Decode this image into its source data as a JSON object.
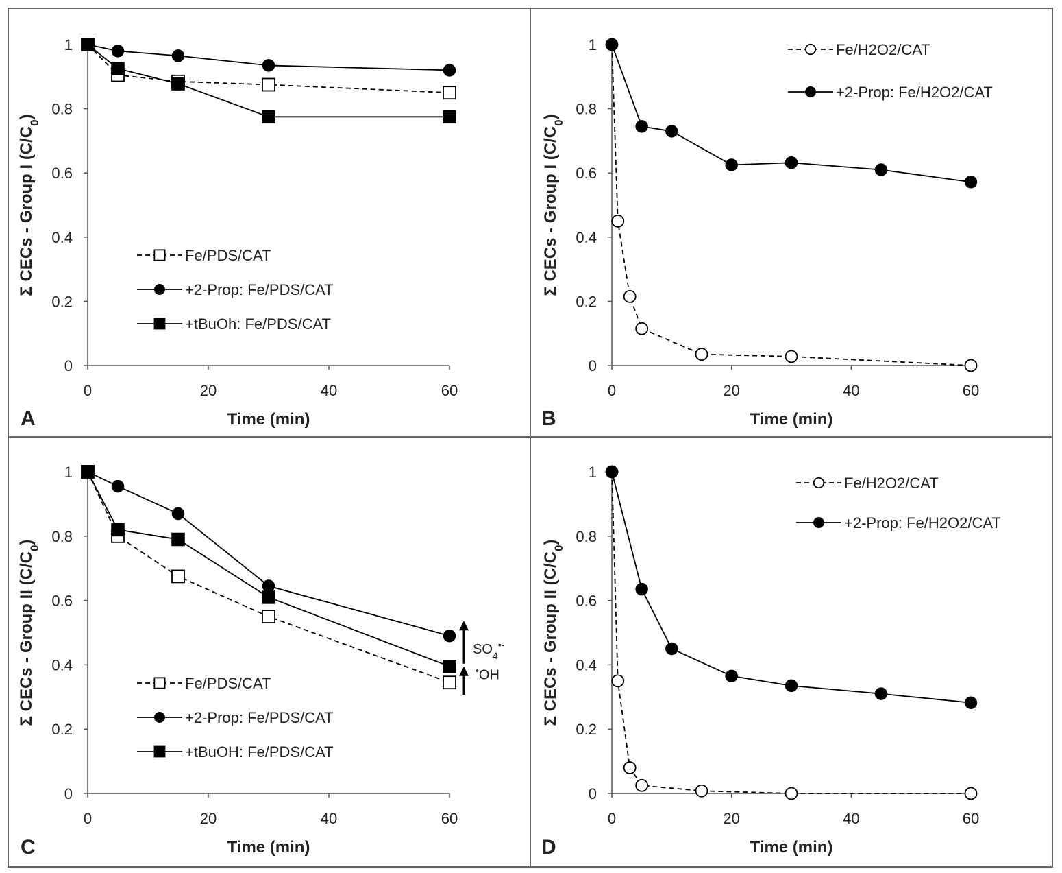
{
  "chart_data": [
    {
      "type": "line",
      "panel": "A",
      "xlabel": "Time (min)",
      "ylabel": "Σ CECs - Group I (C/C",
      "ylabel_sub": "0",
      "ylabel_end": ")",
      "xlim": [
        0,
        60
      ],
      "ylim": [
        0,
        1
      ],
      "xticks": [
        "0",
        "20",
        "40",
        "60"
      ],
      "yticks": [
        "0",
        "0.2",
        "0.4",
        "0.6",
        "0.8",
        "1"
      ],
      "legend_position": "lower-left",
      "series": [
        {
          "name": "Fe/PDS/CAT",
          "marker": "square-open",
          "dash": true,
          "x": [
            0,
            5,
            15,
            30,
            60
          ],
          "y": [
            1.0,
            0.905,
            0.885,
            0.875,
            0.85
          ]
        },
        {
          "name": "+2-Prop: Fe/PDS/CAT",
          "marker": "circle-filled",
          "dash": false,
          "x": [
            0,
            5,
            15,
            30,
            60
          ],
          "y": [
            1.0,
            0.98,
            0.965,
            0.935,
            0.92
          ]
        },
        {
          "name": "+tBuOh: Fe/PDS/CAT",
          "marker": "square-filled",
          "dash": false,
          "x": [
            0,
            5,
            15,
            30,
            60
          ],
          "y": [
            1.0,
            0.925,
            0.878,
            0.775,
            0.775
          ]
        }
      ]
    },
    {
      "type": "line",
      "panel": "B",
      "xlabel": "Time (min)",
      "ylabel": "Σ CECs - Group I (C/C",
      "ylabel_sub": "0",
      "ylabel_end": ")",
      "xlim": [
        0,
        60
      ],
      "ylim": [
        0,
        1
      ],
      "xticks": [
        "0",
        "20",
        "40",
        "60"
      ],
      "yticks": [
        "0",
        "0.2",
        "0.4",
        "0.6",
        "0.8",
        "1"
      ],
      "legend_position": "top-right",
      "series": [
        {
          "name": "Fe/H2O2/CAT",
          "marker": "circle-open",
          "dash": true,
          "x": [
            0,
            1,
            3,
            5,
            15,
            30,
            60
          ],
          "y": [
            1.0,
            0.45,
            0.215,
            0.115,
            0.035,
            0.028,
            0.0
          ]
        },
        {
          "name": "+2-Prop: Fe/H2O2/CAT",
          "marker": "circle-filled",
          "dash": false,
          "x": [
            0,
            5,
            10,
            20,
            30,
            45,
            60
          ],
          "y": [
            1.0,
            0.745,
            0.73,
            0.625,
            0.632,
            0.61,
            0.572
          ]
        }
      ]
    },
    {
      "type": "line",
      "panel": "C",
      "xlabel": "Time (min)",
      "ylabel": "Σ CECs - Group II (C/C",
      "ylabel_sub": "0",
      "ylabel_end": ")",
      "xlim": [
        0,
        60
      ],
      "ylim": [
        0,
        1
      ],
      "xticks": [
        "0",
        "20",
        "40",
        "60"
      ],
      "yticks": [
        "0",
        "0.2",
        "0.4",
        "0.6",
        "0.8",
        "1"
      ],
      "legend_position": "lower-left",
      "annotations": {
        "so4": "SO",
        "so4_sub": "4",
        "so4_sup": "•-",
        "oh_dot": "•",
        "oh": "OH"
      },
      "series": [
        {
          "name": "Fe/PDS/CAT",
          "marker": "square-open",
          "dash": true,
          "x": [
            0,
            5,
            15,
            30,
            60
          ],
          "y": [
            1.0,
            0.8,
            0.675,
            0.55,
            0.345
          ]
        },
        {
          "name": "+2-Prop: Fe/PDS/CAT",
          "marker": "circle-filled",
          "dash": false,
          "x": [
            0,
            5,
            15,
            30,
            60
          ],
          "y": [
            1.0,
            0.955,
            0.87,
            0.645,
            0.49
          ]
        },
        {
          "name": "+tBuOH: Fe/PDS/CAT",
          "marker": "square-filled",
          "dash": false,
          "x": [
            0,
            5,
            15,
            30,
            60
          ],
          "y": [
            1.0,
            0.82,
            0.79,
            0.61,
            0.395
          ]
        }
      ]
    },
    {
      "type": "line",
      "panel": "D",
      "xlabel": "Time (min)",
      "ylabel": "Σ CECs - Group II (C/C",
      "ylabel_sub": "0",
      "ylabel_end": ")",
      "xlim": [
        0,
        60
      ],
      "ylim": [
        0,
        1
      ],
      "xticks": [
        "0",
        "20",
        "40",
        "60"
      ],
      "yticks": [
        "0",
        "0.2",
        "0.4",
        "0.6",
        "0.8",
        "1"
      ],
      "legend_position": "top-right",
      "series": [
        {
          "name": "Fe/H2O2/CAT",
          "marker": "circle-open",
          "dash": true,
          "x": [
            0,
            1,
            3,
            5,
            15,
            30,
            60
          ],
          "y": [
            1.0,
            0.35,
            0.08,
            0.025,
            0.008,
            0.0,
            0.0
          ]
        },
        {
          "name": "+2-Prop: Fe/H2O2/CAT",
          "marker": "circle-filled",
          "dash": false,
          "x": [
            0,
            5,
            10,
            20,
            30,
            45,
            60
          ],
          "y": [
            1.0,
            0.635,
            0.45,
            0.365,
            0.335,
            0.31,
            0.282
          ]
        }
      ]
    }
  ]
}
